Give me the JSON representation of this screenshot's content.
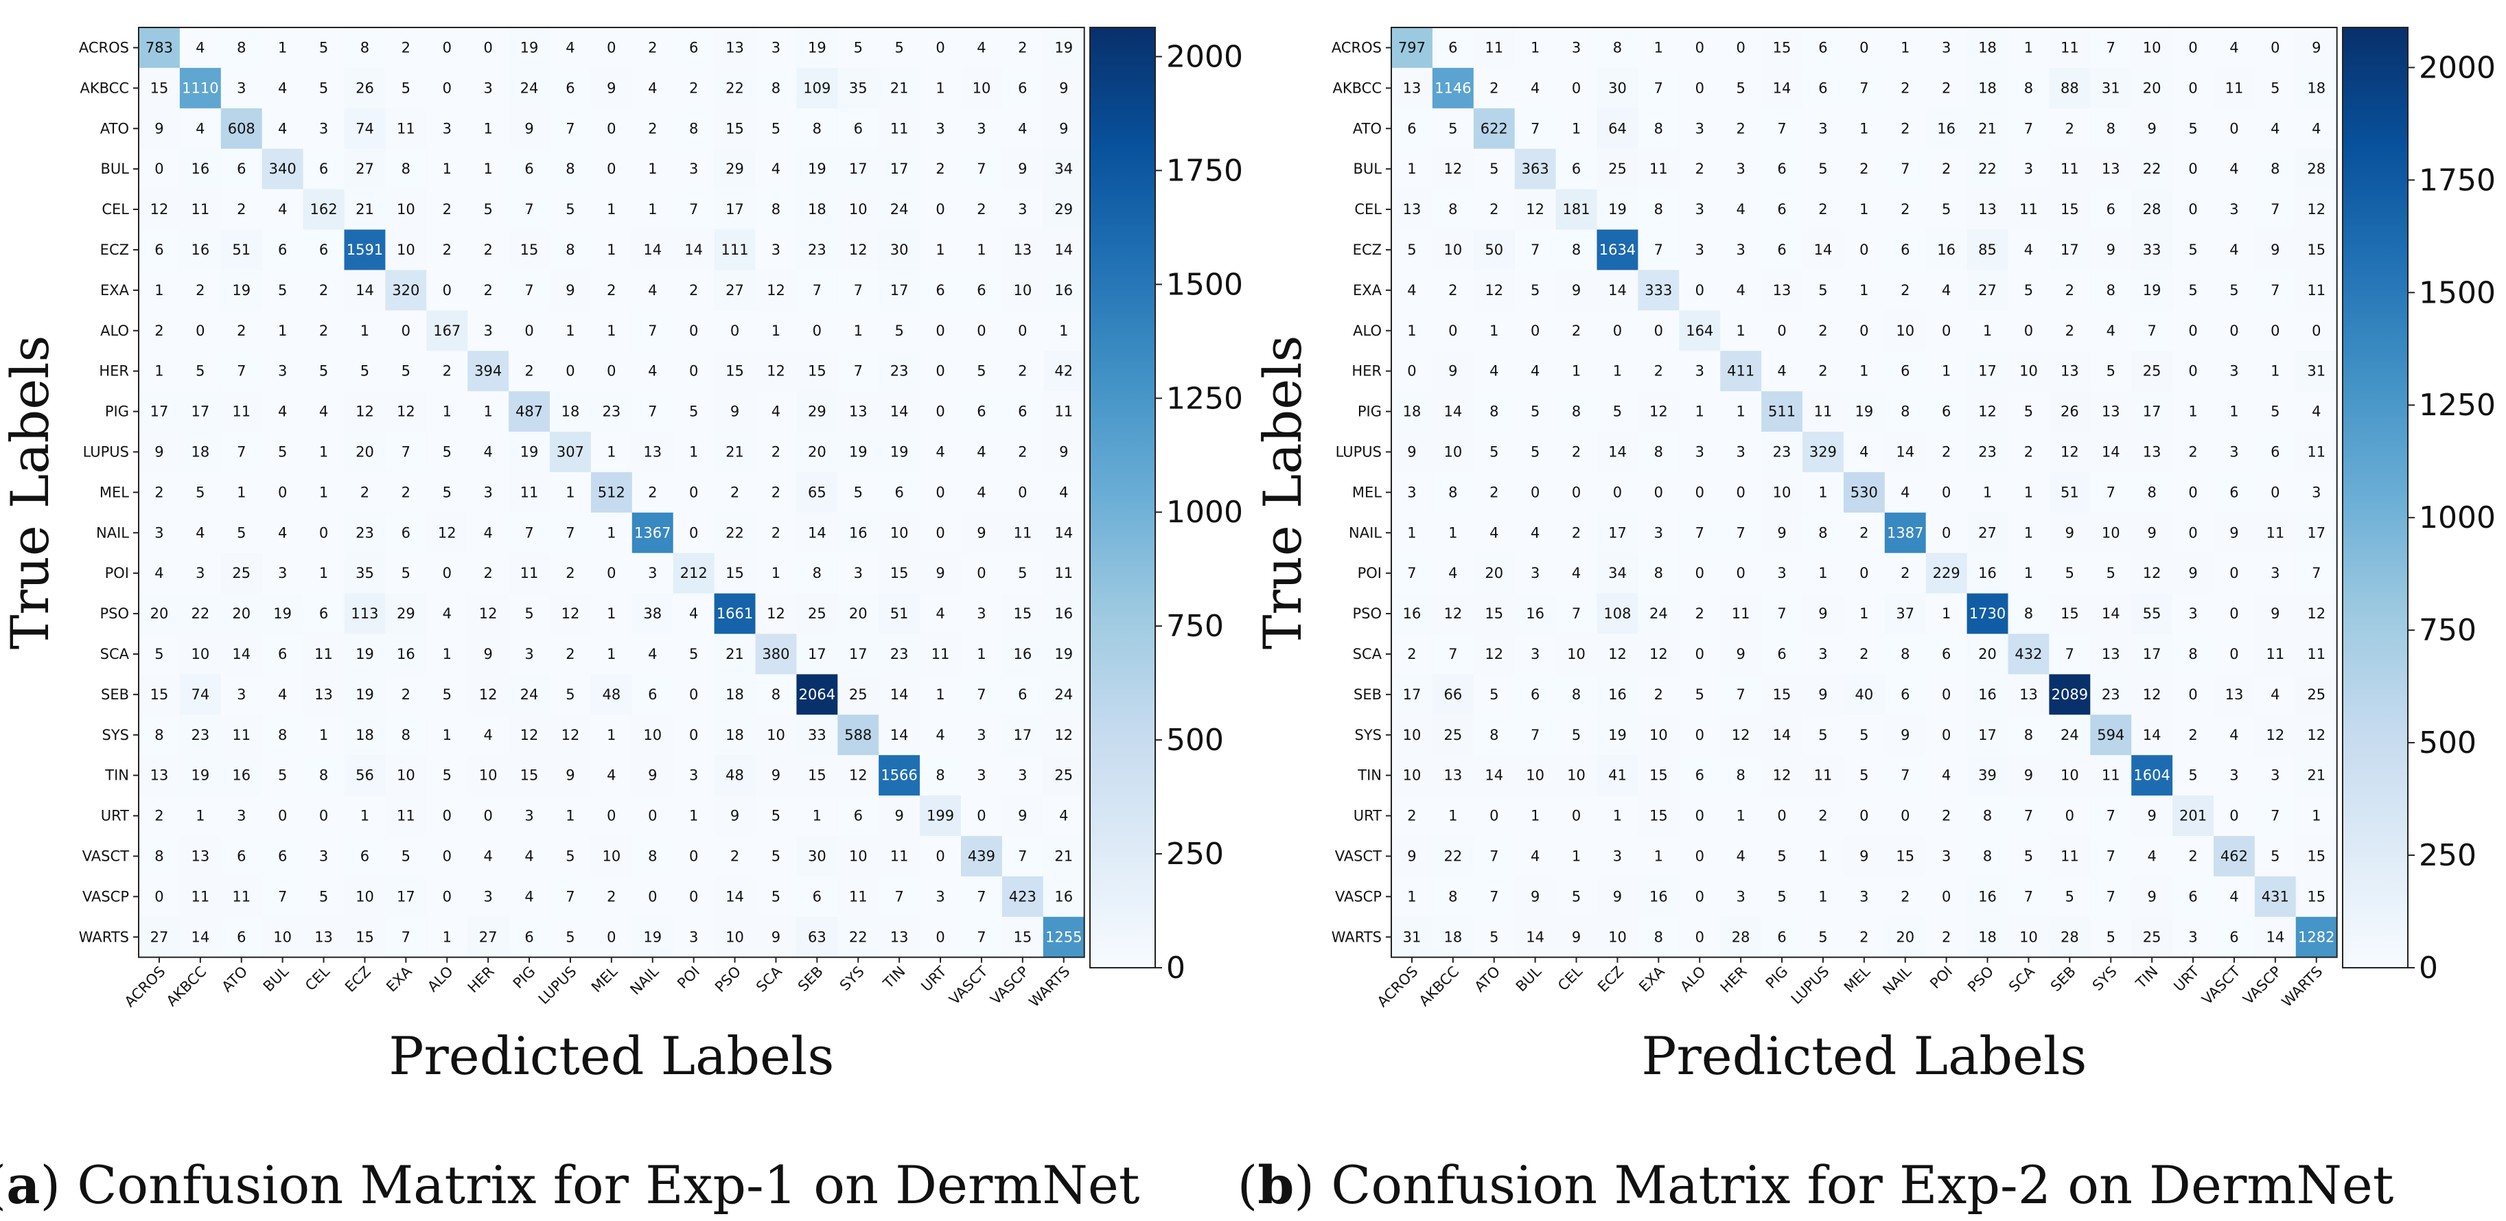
{
  "chart_data": [
    {
      "type": "heatmap",
      "panel_letter": "a",
      "caption": "Confusion Matrix for Exp-1 on DermNet",
      "xlabel": "Predicted Labels",
      "ylabel": "True Labels",
      "labels": [
        "ACROS",
        "AKBCC",
        "ATO",
        "BUL",
        "CEL",
        "ECZ",
        "EXA",
        "ALO",
        "HER",
        "PIG",
        "LUPUS",
        "MEL",
        "NAIL",
        "POI",
        "PSO",
        "SCA",
        "SEB",
        "SYS",
        "TIN",
        "URT",
        "VASCT",
        "VASCP",
        "WARTS"
      ],
      "matrix": [
        [
          783,
          4,
          8,
          1,
          5,
          8,
          2,
          0,
          0,
          19,
          4,
          0,
          2,
          6,
          13,
          3,
          19,
          5,
          5,
          0,
          4,
          2,
          19
        ],
        [
          15,
          1110,
          3,
          4,
          5,
          26,
          5,
          0,
          3,
          24,
          6,
          9,
          4,
          2,
          22,
          8,
          109,
          35,
          21,
          1,
          10,
          6,
          9
        ],
        [
          9,
          4,
          608,
          4,
          3,
          74,
          11,
          3,
          1,
          9,
          7,
          0,
          2,
          8,
          15,
          5,
          8,
          6,
          11,
          3,
          3,
          4,
          9
        ],
        [
          0,
          16,
          6,
          340,
          6,
          27,
          8,
          1,
          1,
          6,
          8,
          0,
          1,
          3,
          29,
          4,
          19,
          17,
          17,
          2,
          7,
          9,
          34
        ],
        [
          12,
          11,
          2,
          4,
          162,
          21,
          10,
          2,
          5,
          7,
          5,
          1,
          1,
          7,
          17,
          8,
          18,
          10,
          24,
          0,
          2,
          3,
          29
        ],
        [
          6,
          16,
          51,
          6,
          6,
          1591,
          10,
          2,
          2,
          15,
          8,
          1,
          14,
          14,
          111,
          3,
          23,
          12,
          30,
          1,
          1,
          13,
          14
        ],
        [
          1,
          2,
          19,
          5,
          2,
          14,
          320,
          0,
          2,
          7,
          9,
          2,
          4,
          2,
          27,
          12,
          7,
          7,
          17,
          6,
          6,
          10,
          16
        ],
        [
          2,
          0,
          2,
          1,
          2,
          1,
          0,
          167,
          3,
          0,
          1,
          1,
          7,
          0,
          0,
          1,
          0,
          1,
          5,
          0,
          0,
          0,
          1
        ],
        [
          1,
          5,
          7,
          3,
          5,
          5,
          5,
          2,
          394,
          2,
          0,
          0,
          4,
          0,
          15,
          12,
          15,
          7,
          23,
          0,
          5,
          2,
          42
        ],
        [
          17,
          17,
          11,
          4,
          4,
          12,
          12,
          1,
          1,
          487,
          18,
          23,
          7,
          5,
          9,
          4,
          29,
          13,
          14,
          0,
          6,
          6,
          11
        ],
        [
          9,
          18,
          7,
          5,
          1,
          20,
          7,
          5,
          4,
          19,
          307,
          1,
          13,
          1,
          21,
          2,
          20,
          19,
          19,
          4,
          4,
          2,
          9
        ],
        [
          2,
          5,
          1,
          0,
          1,
          2,
          2,
          5,
          3,
          11,
          1,
          512,
          2,
          0,
          2,
          2,
          65,
          5,
          6,
          0,
          4,
          0,
          4
        ],
        [
          3,
          4,
          5,
          4,
          0,
          23,
          6,
          12,
          4,
          7,
          7,
          1,
          1367,
          0,
          22,
          2,
          14,
          16,
          10,
          0,
          9,
          11,
          14
        ],
        [
          4,
          3,
          25,
          3,
          1,
          35,
          5,
          0,
          2,
          11,
          2,
          0,
          3,
          212,
          15,
          1,
          8,
          3,
          15,
          9,
          0,
          5,
          11
        ],
        [
          20,
          22,
          20,
          19,
          6,
          113,
          29,
          4,
          12,
          5,
          12,
          1,
          38,
          4,
          1661,
          12,
          25,
          20,
          51,
          4,
          3,
          15,
          16
        ],
        [
          5,
          10,
          14,
          6,
          11,
          19,
          16,
          1,
          9,
          3,
          2,
          1,
          4,
          5,
          21,
          380,
          17,
          17,
          23,
          11,
          1,
          16,
          19
        ],
        [
          15,
          74,
          3,
          4,
          13,
          19,
          2,
          5,
          12,
          24,
          5,
          48,
          6,
          0,
          18,
          8,
          2064,
          25,
          14,
          1,
          7,
          6,
          24
        ],
        [
          8,
          23,
          11,
          8,
          1,
          18,
          8,
          1,
          4,
          12,
          12,
          1,
          10,
          0,
          18,
          10,
          33,
          588,
          14,
          4,
          3,
          17,
          12
        ],
        [
          13,
          19,
          16,
          5,
          8,
          56,
          10,
          5,
          10,
          15,
          9,
          4,
          9,
          3,
          48,
          9,
          15,
          12,
          1566,
          8,
          3,
          3,
          25
        ],
        [
          2,
          1,
          3,
          0,
          0,
          1,
          11,
          0,
          0,
          3,
          1,
          0,
          0,
          1,
          9,
          5,
          1,
          6,
          9,
          199,
          0,
          9,
          4
        ],
        [
          8,
          13,
          6,
          6,
          3,
          6,
          5,
          0,
          4,
          4,
          5,
          10,
          8,
          0,
          2,
          5,
          30,
          10,
          11,
          0,
          439,
          7,
          21
        ],
        [
          0,
          11,
          11,
          7,
          5,
          10,
          17,
          0,
          3,
          4,
          7,
          2,
          0,
          0,
          14,
          5,
          6,
          11,
          7,
          3,
          7,
          423,
          16
        ],
        [
          27,
          14,
          6,
          10,
          13,
          15,
          7,
          1,
          27,
          6,
          5,
          0,
          19,
          3,
          10,
          9,
          63,
          22,
          13,
          0,
          7,
          15,
          1255
        ]
      ],
      "colorbar": {
        "min": 0,
        "max": 2064,
        "ticks": [
          0,
          250,
          500,
          750,
          1000,
          1250,
          1500,
          1750,
          2000
        ]
      },
      "colormap": "Blues"
    },
    {
      "type": "heatmap",
      "panel_letter": "b",
      "caption": "Confusion Matrix for Exp-2 on DermNet",
      "xlabel": "Predicted Labels",
      "ylabel": "True Labels",
      "labels": [
        "ACROS",
        "AKBCC",
        "ATO",
        "BUL",
        "CEL",
        "ECZ",
        "EXA",
        "ALO",
        "HER",
        "PIG",
        "LUPUS",
        "MEL",
        "NAIL",
        "POI",
        "PSO",
        "SCA",
        "SEB",
        "SYS",
        "TIN",
        "URT",
        "VASCT",
        "VASCP",
        "WARTS"
      ],
      "matrix": [
        [
          797,
          6,
          11,
          1,
          3,
          8,
          1,
          0,
          0,
          15,
          6,
          0,
          1,
          3,
          18,
          1,
          11,
          7,
          10,
          0,
          4,
          0,
          9
        ],
        [
          13,
          1146,
          2,
          4,
          0,
          30,
          7,
          0,
          5,
          14,
          6,
          7,
          2,
          2,
          18,
          8,
          88,
          31,
          20,
          0,
          11,
          5,
          18
        ],
        [
          6,
          5,
          622,
          7,
          1,
          64,
          8,
          3,
          2,
          7,
          3,
          1,
          2,
          16,
          21,
          7,
          2,
          8,
          9,
          5,
          0,
          4,
          4
        ],
        [
          1,
          12,
          5,
          363,
          6,
          25,
          11,
          2,
          3,
          6,
          5,
          2,
          7,
          2,
          22,
          3,
          11,
          13,
          22,
          0,
          4,
          8,
          28
        ],
        [
          13,
          8,
          2,
          12,
          181,
          19,
          8,
          3,
          4,
          6,
          2,
          1,
          2,
          5,
          13,
          11,
          15,
          6,
          28,
          0,
          3,
          7,
          12
        ],
        [
          5,
          10,
          50,
          7,
          8,
          1634,
          7,
          3,
          3,
          6,
          14,
          0,
          6,
          16,
          85,
          4,
          17,
          9,
          33,
          5,
          4,
          9,
          15
        ],
        [
          4,
          2,
          12,
          5,
          9,
          14,
          333,
          0,
          4,
          13,
          5,
          1,
          2,
          4,
          27,
          5,
          2,
          8,
          19,
          5,
          5,
          7,
          11
        ],
        [
          1,
          0,
          1,
          0,
          2,
          0,
          0,
          164,
          1,
          0,
          2,
          0,
          10,
          0,
          1,
          0,
          2,
          4,
          7,
          0,
          0,
          0,
          0
        ],
        [
          0,
          9,
          4,
          4,
          1,
          1,
          2,
          3,
          411,
          4,
          2,
          1,
          6,
          1,
          17,
          10,
          13,
          5,
          25,
          0,
          3,
          1,
          31
        ],
        [
          18,
          14,
          8,
          5,
          8,
          5,
          12,
          1,
          1,
          511,
          11,
          19,
          8,
          6,
          12,
          5,
          26,
          13,
          17,
          1,
          1,
          5,
          4
        ],
        [
          9,
          10,
          5,
          5,
          2,
          14,
          8,
          3,
          3,
          23,
          329,
          4,
          14,
          2,
          23,
          2,
          12,
          14,
          13,
          2,
          3,
          6,
          11
        ],
        [
          3,
          8,
          2,
          0,
          0,
          0,
          0,
          0,
          0,
          10,
          1,
          530,
          4,
          0,
          1,
          1,
          51,
          7,
          8,
          0,
          6,
          0,
          3
        ],
        [
          1,
          1,
          4,
          4,
          2,
          17,
          3,
          7,
          7,
          9,
          8,
          2,
          1387,
          0,
          27,
          1,
          9,
          10,
          9,
          0,
          9,
          11,
          17
        ],
        [
          7,
          4,
          20,
          3,
          4,
          34,
          8,
          0,
          0,
          3,
          1,
          0,
          2,
          229,
          16,
          1,
          5,
          5,
          12,
          9,
          0,
          3,
          7
        ],
        [
          16,
          12,
          15,
          16,
          7,
          108,
          24,
          2,
          11,
          7,
          9,
          1,
          37,
          1,
          1730,
          8,
          15,
          14,
          55,
          3,
          0,
          9,
          12
        ],
        [
          2,
          7,
          12,
          3,
          10,
          12,
          12,
          0,
          9,
          6,
          3,
          2,
          8,
          6,
          20,
          432,
          7,
          13,
          17,
          8,
          0,
          11,
          11
        ],
        [
          17,
          66,
          5,
          6,
          8,
          16,
          2,
          5,
          7,
          15,
          9,
          40,
          6,
          0,
          16,
          13,
          2089,
          23,
          12,
          0,
          13,
          4,
          25
        ],
        [
          10,
          25,
          8,
          7,
          5,
          19,
          10,
          0,
          12,
          14,
          5,
          5,
          9,
          0,
          17,
          8,
          24,
          594,
          14,
          2,
          4,
          12,
          12
        ],
        [
          10,
          13,
          14,
          10,
          10,
          41,
          15,
          6,
          8,
          12,
          11,
          5,
          7,
          4,
          39,
          9,
          10,
          11,
          1604,
          5,
          3,
          3,
          21
        ],
        [
          2,
          1,
          0,
          1,
          0,
          1,
          15,
          0,
          1,
          0,
          2,
          0,
          0,
          2,
          8,
          7,
          0,
          7,
          9,
          201,
          0,
          7,
          1
        ],
        [
          9,
          22,
          7,
          4,
          1,
          3,
          1,
          0,
          4,
          5,
          1,
          9,
          15,
          3,
          8,
          5,
          11,
          7,
          4,
          2,
          462,
          5,
          15
        ],
        [
          1,
          8,
          7,
          9,
          5,
          9,
          16,
          0,
          3,
          5,
          1,
          3,
          2,
          0,
          16,
          7,
          5,
          7,
          9,
          6,
          4,
          431,
          15
        ],
        [
          31,
          18,
          5,
          14,
          9,
          10,
          8,
          0,
          28,
          6,
          5,
          2,
          20,
          2,
          18,
          10,
          28,
          5,
          25,
          3,
          6,
          14,
          1282
        ]
      ],
      "colorbar": {
        "min": 0,
        "max": 2089,
        "ticks": [
          0,
          250,
          500,
          750,
          1000,
          1250,
          1500,
          1750,
          2000
        ]
      },
      "colormap": "Blues"
    }
  ]
}
